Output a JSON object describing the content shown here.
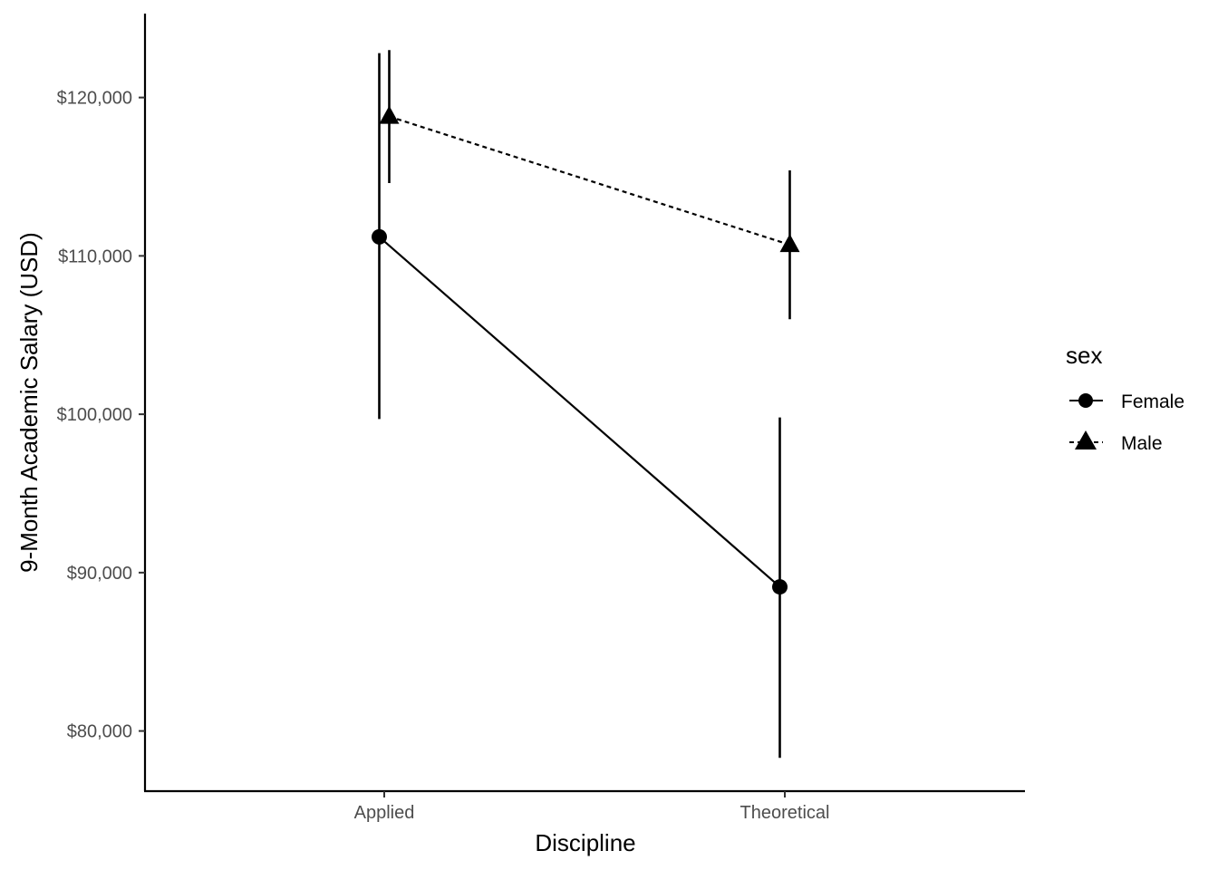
{
  "chart_data": {
    "type": "line",
    "title": "",
    "xlabel": "Discipline",
    "ylabel": "9-Month Academic Salary (USD)",
    "categories": [
      "Applied",
      "Theoretical"
    ],
    "ylim": [
      76200,
      125300
    ],
    "yticks": [
      80000,
      90000,
      100000,
      110000,
      120000
    ],
    "ytick_labels": [
      "$80,000",
      "$90,000",
      "$100,000",
      "$110,000",
      "$120,000"
    ],
    "grid": false,
    "legend": {
      "title": "sex",
      "position": "right"
    },
    "series": [
      {
        "name": "Female",
        "marker": "circle",
        "linetype": "solid",
        "values": [
          111200,
          89100
        ],
        "lower": [
          99700,
          78300
        ],
        "upper": [
          122800,
          99800
        ]
      },
      {
        "name": "Male",
        "marker": "triangle",
        "linetype": "dashed",
        "values": [
          118800,
          110700
        ],
        "lower": [
          114600,
          106000
        ],
        "upper": [
          123000,
          115400
        ]
      }
    ]
  }
}
